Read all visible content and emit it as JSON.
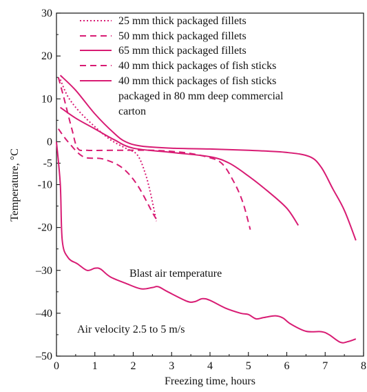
{
  "chart_data": {
    "type": "line",
    "xlabel": "Freezing time, hours",
    "ylabel": "Temperature, °C",
    "xlim": [
      0,
      8
    ],
    "ylim": [
      -50,
      30
    ],
    "grid": false,
    "legend_position": "top",
    "x_ticks": [
      {
        "value": 0,
        "label": "0"
      },
      {
        "value": 1,
        "label": "1"
      },
      {
        "value": 2,
        "label": "2"
      },
      {
        "value": 3,
        "label": "3"
      },
      {
        "value": 4,
        "label": "4"
      },
      {
        "value": 5,
        "label": "5"
      },
      {
        "value": 6,
        "label": "6"
      },
      {
        "value": 7,
        "label": "7"
      },
      {
        "value": 8,
        "label": "8"
      }
    ],
    "y_ticks": [
      {
        "value": 30,
        "label": "30"
      },
      {
        "value": 20,
        "label": "20"
      },
      {
        "value": 10,
        "label": "10"
      },
      {
        "value": 0,
        "label": "0"
      },
      {
        "value": -5,
        "label": "-5"
      },
      {
        "value": -10,
        "label": "-10"
      },
      {
        "value": -20,
        "label": "-20"
      },
      {
        "value": -30,
        "label": "–30"
      },
      {
        "value": -40,
        "label": "–40"
      },
      {
        "value": -50,
        "label": "–50"
      }
    ],
    "series": [
      {
        "name": "25 mm thick packaged fillets",
        "style": "dotted",
        "points": [
          [
            0.1,
            14.5
          ],
          [
            0.3,
            10.5
          ],
          [
            0.6,
            7
          ],
          [
            1.0,
            3.5
          ],
          [
            1.4,
            0.5
          ],
          [
            1.8,
            -1.5
          ],
          [
            2.1,
            -3
          ],
          [
            2.3,
            -7
          ],
          [
            2.45,
            -12
          ],
          [
            2.6,
            -18.5
          ]
        ]
      },
      {
        "name": "50 mm thick packaged fillets",
        "style": "dashed",
        "points": [
          [
            0.05,
            15
          ],
          [
            0.2,
            10
          ],
          [
            0.4,
            3
          ],
          [
            0.55,
            -1.5
          ],
          [
            0.8,
            -2
          ],
          [
            1.5,
            -2
          ],
          [
            2.5,
            -2
          ],
          [
            3.3,
            -2.5
          ],
          [
            3.9,
            -3.5
          ],
          [
            4.3,
            -5
          ],
          [
            4.6,
            -9
          ],
          [
            4.85,
            -14
          ],
          [
            5.05,
            -20.5
          ]
        ]
      },
      {
        "name": "65 mm thick packaged fillets",
        "style": "solid",
        "points": [
          [
            0.1,
            8
          ],
          [
            0.5,
            5.5
          ],
          [
            1.0,
            3
          ],
          [
            1.5,
            0.5
          ],
          [
            2.0,
            -1.5
          ],
          [
            3.0,
            -2.5
          ],
          [
            4.0,
            -3.5
          ],
          [
            4.5,
            -5
          ],
          [
            5.0,
            -8
          ],
          [
            5.5,
            -11.5
          ],
          [
            6.0,
            -15.5
          ],
          [
            6.3,
            -19.5
          ]
        ]
      },
      {
        "name": "40 mm thick packages of fish sticks",
        "style": "dashed",
        "points": [
          [
            0.05,
            3
          ],
          [
            0.3,
            0
          ],
          [
            0.7,
            -3.5
          ],
          [
            1.2,
            -4
          ],
          [
            1.7,
            -6
          ],
          [
            2.1,
            -10
          ],
          [
            2.5,
            -16.5
          ],
          [
            2.6,
            -18
          ]
        ]
      },
      {
        "name": "40 mm thick packages of fish sticks packaged in 80 mm deep commercial carton",
        "style": "solid",
        "points": [
          [
            0.1,
            15.5
          ],
          [
            0.5,
            12
          ],
          [
            1.0,
            6.5
          ],
          [
            1.5,
            2
          ],
          [
            1.8,
            0
          ],
          [
            2.2,
            -1
          ],
          [
            3.0,
            -1.5
          ],
          [
            4.0,
            -1.7
          ],
          [
            5.0,
            -2
          ],
          [
            6.0,
            -2.5
          ],
          [
            6.6,
            -3.5
          ],
          [
            6.9,
            -6
          ],
          [
            7.2,
            -11
          ],
          [
            7.5,
            -16
          ],
          [
            7.8,
            -23
          ]
        ]
      },
      {
        "name": "Blast air temperature",
        "style": "solid",
        "points": [
          [
            0.0,
            0
          ],
          [
            0.1,
            -10
          ],
          [
            0.15,
            -23
          ],
          [
            0.3,
            -27
          ],
          [
            0.55,
            -28.5
          ],
          [
            0.8,
            -30
          ],
          [
            1.0,
            -29.5
          ],
          [
            1.15,
            -29.7
          ],
          [
            1.4,
            -31.5
          ],
          [
            1.8,
            -33
          ],
          [
            2.2,
            -34.3
          ],
          [
            2.5,
            -34
          ],
          [
            2.65,
            -33.8
          ],
          [
            2.9,
            -35
          ],
          [
            3.4,
            -37.2
          ],
          [
            3.6,
            -37.3
          ],
          [
            3.8,
            -36.6
          ],
          [
            4.0,
            -37
          ],
          [
            4.4,
            -38.8
          ],
          [
            4.8,
            -40
          ],
          [
            5.0,
            -40.3
          ],
          [
            5.2,
            -41.3
          ],
          [
            5.4,
            -41
          ],
          [
            5.7,
            -40.6
          ],
          [
            5.9,
            -41.1
          ],
          [
            6.1,
            -42.5
          ],
          [
            6.5,
            -44.2
          ],
          [
            6.9,
            -44.3
          ],
          [
            7.1,
            -45
          ],
          [
            7.4,
            -46.8
          ],
          [
            7.6,
            -46.6
          ],
          [
            7.8,
            -46
          ]
        ]
      }
    ],
    "legend": [
      {
        "label": "25 mm thick packaged fillets",
        "style": "dotted"
      },
      {
        "label": "50 mm thick packaged fillets",
        "style": "dashed"
      },
      {
        "label": "65 mm thick packaged fillets",
        "style": "solid"
      },
      {
        "label": "40 mm thick packages of fish sticks",
        "style": "dashed"
      },
      {
        "label": "40 mm thick packages of fish sticks",
        "style": "solid"
      }
    ],
    "legend_extra_lines": [
      "packaged in 80 mm deep commercial",
      "carton"
    ],
    "annotations": {
      "blast": "Blast air temperature",
      "velocity": "Air velocity 2.5 to 5 m/s"
    },
    "line_color": "#d81b73"
  }
}
